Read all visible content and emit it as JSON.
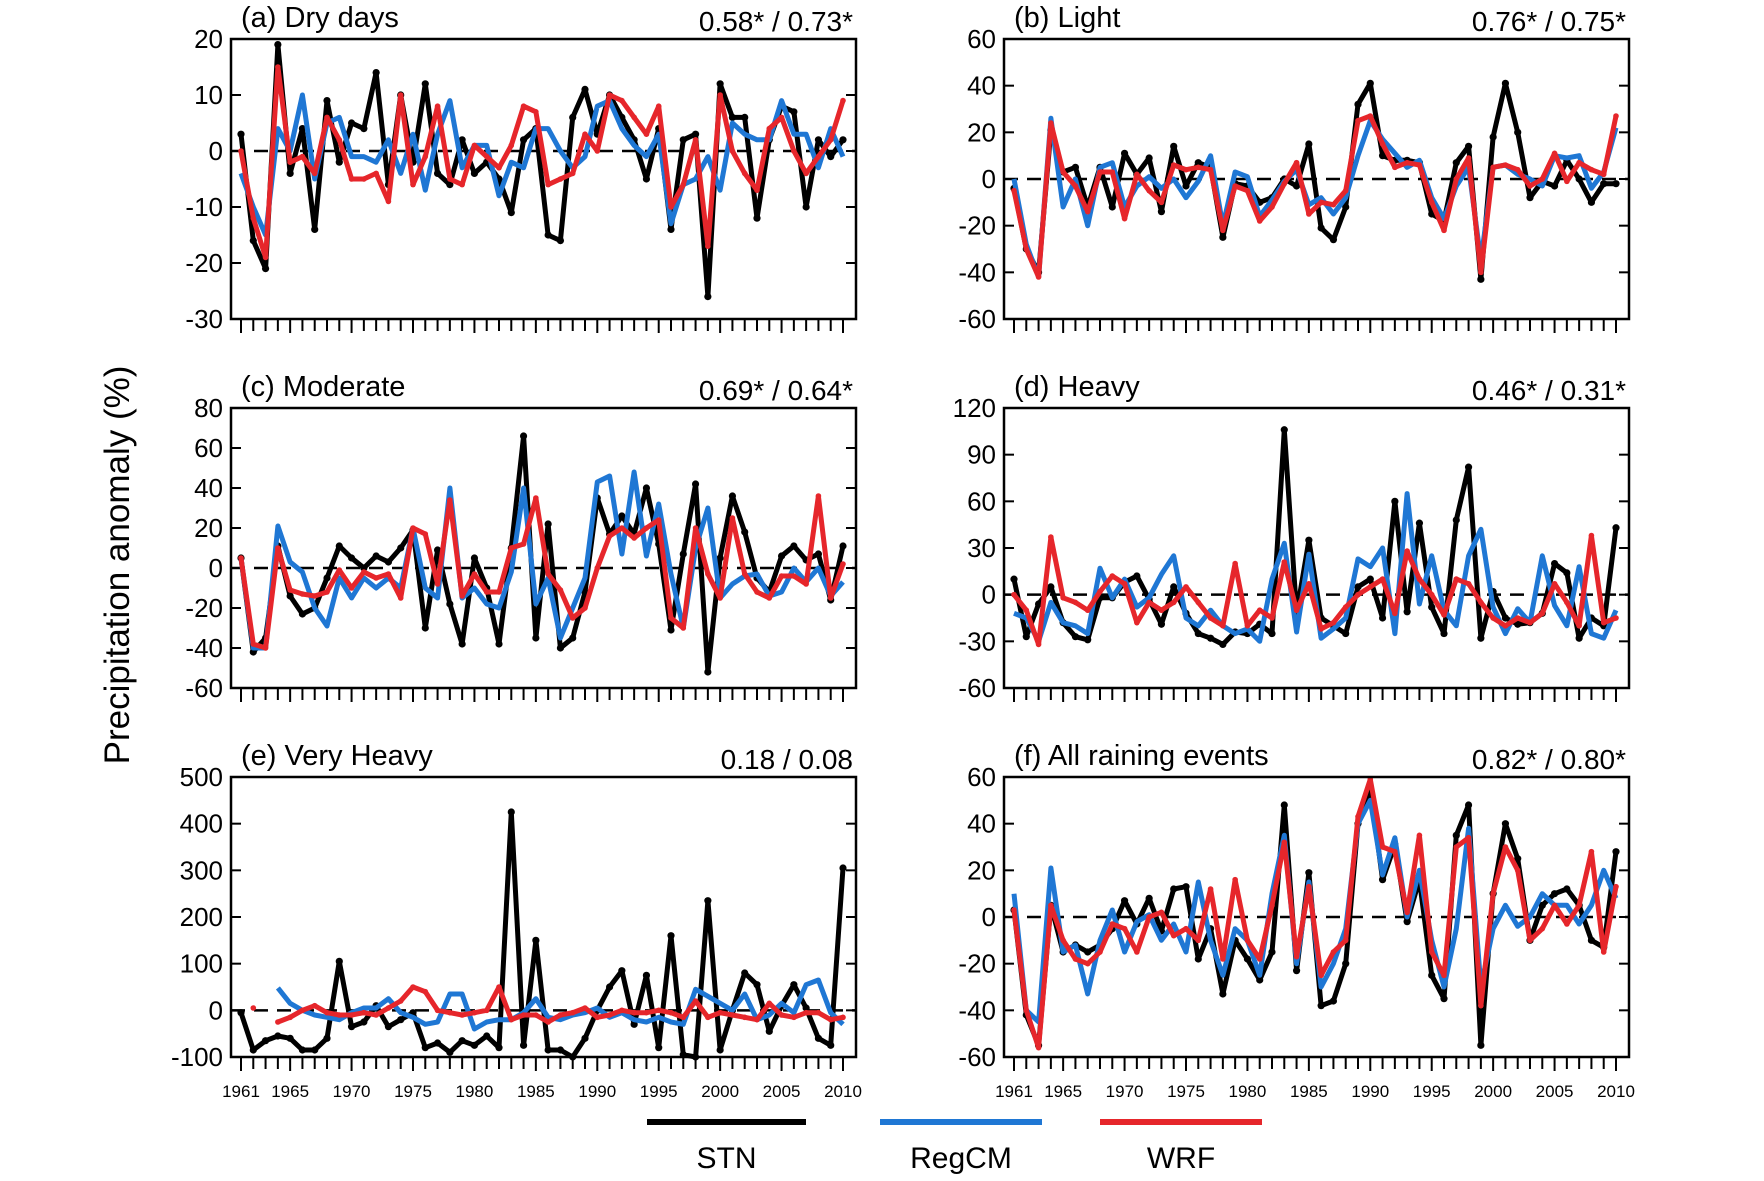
{
  "figure": {
    "ylabel": "Precipitation anomaly (%)",
    "legend": [
      {
        "name": "STN",
        "color": "#000000"
      },
      {
        "name": "RegCM",
        "color": "#1f77d4"
      },
      {
        "name": "WRF",
        "color": "#e6262b"
      }
    ]
  },
  "chart_data": [
    {
      "type": "line",
      "title": "(a) Dry days",
      "corr": "0.58* / 0.73*",
      "ylim": [
        -30,
        20
      ],
      "yticks": [
        -30,
        -20,
        -10,
        0,
        10,
        20
      ],
      "xlim": [
        1961,
        2010
      ],
      "xticks": [
        1961,
        1965,
        1970,
        1975,
        1980,
        1985,
        1990,
        1995,
        2000,
        2005,
        2010
      ],
      "series": [
        {
          "name": "STN",
          "values": [
            3,
            -16,
            -21,
            19,
            -4,
            4,
            -14,
            9,
            -2,
            5,
            4,
            14,
            -6,
            10,
            -2,
            12,
            -4,
            -6,
            2,
            -4,
            -2,
            -5,
            -11,
            2,
            4,
            -15,
            -16,
            6,
            11,
            3,
            10,
            6,
            2,
            -5,
            4,
            -14,
            2,
            3,
            -26,
            12,
            6,
            6,
            -12,
            2,
            8,
            7,
            -10,
            2,
            -1,
            2
          ]
        },
        {
          "name": "RegCM",
          "values": [
            -4,
            -10,
            -15,
            4,
            0,
            10,
            -5,
            5,
            6,
            -1,
            -1,
            -2,
            2,
            -4,
            3,
            -7,
            3,
            9,
            -3,
            1,
            1,
            -8,
            -2,
            -3,
            4,
            4,
            0,
            -3,
            -1,
            8,
            9,
            4,
            1,
            -1,
            3,
            -13,
            -6,
            -5,
            -1,
            -7,
            5,
            3,
            2,
            2,
            9,
            3,
            3,
            -3,
            4,
            -1
          ]
        },
        {
          "name": "WRF",
          "values": [
            0,
            -12,
            -19,
            15,
            -2,
            -1,
            -4,
            6,
            2,
            -5,
            -5,
            -4,
            -9,
            10,
            -6,
            -1,
            8,
            -5,
            -6,
            1,
            -1,
            -3,
            1,
            8,
            7,
            -6,
            -5,
            -4,
            3,
            0,
            10,
            9,
            6,
            3,
            8,
            -10,
            -6,
            2,
            -17,
            10,
            0,
            -4,
            -7,
            4,
            6,
            0,
            -4,
            -1,
            2,
            9
          ]
        }
      ]
    },
    {
      "type": "line",
      "title": "(b) Light",
      "corr": "0.76* / 0.75*",
      "ylim": [
        -60,
        60
      ],
      "yticks": [
        -60,
        -40,
        -20,
        0,
        20,
        40,
        60
      ],
      "xlim": [
        1961,
        2010
      ],
      "xticks": [
        1961,
        1965,
        1970,
        1975,
        1980,
        1985,
        1990,
        1995,
        2000,
        2005,
        2010
      ],
      "series": [
        {
          "name": "STN",
          "values": [
            -4,
            -30,
            -40,
            21,
            3,
            5,
            -12,
            5,
            -12,
            11,
            2,
            9,
            -14,
            14,
            -3,
            7,
            5,
            -25,
            -2,
            -3,
            -10,
            -8,
            0,
            -3,
            15,
            -21,
            -26,
            -12,
            32,
            41,
            10,
            8,
            8,
            7,
            -15,
            -18,
            7,
            14,
            -43,
            18,
            41,
            20,
            -8,
            -1,
            -3,
            8,
            0,
            -10,
            -2,
            -2
          ]
        },
        {
          "name": "RegCM",
          "values": [
            0,
            -28,
            -42,
            26,
            -12,
            0,
            -20,
            5,
            7,
            -12,
            -3,
            1,
            -4,
            0,
            -8,
            -1,
            10,
            -20,
            3,
            1,
            -16,
            -9,
            -1,
            4,
            -11,
            -8,
            -15,
            -8,
            10,
            25,
            17,
            11,
            5,
            8,
            -8,
            -17,
            -3,
            5,
            -35,
            5,
            6,
            2,
            0,
            -3,
            10,
            9,
            10,
            -4,
            3,
            22
          ]
        },
        {
          "name": "WRF",
          "values": [
            -5,
            -30,
            -42,
            24,
            3,
            -3,
            -14,
            3,
            3,
            -17,
            2,
            -5,
            -10,
            6,
            4,
            5,
            4,
            -22,
            -3,
            -5,
            -18,
            -12,
            -2,
            7,
            -15,
            -10,
            -11,
            -5,
            25,
            27,
            15,
            5,
            7,
            6,
            -10,
            -22,
            0,
            9,
            -40,
            5,
            6,
            4,
            -3,
            0,
            11,
            -1,
            7,
            4,
            2,
            27
          ]
        }
      ]
    },
    {
      "type": "line",
      "title": "(c) Moderate",
      "corr": "0.69* / 0.64*",
      "ylim": [
        -60,
        80
      ],
      "yticks": [
        -60,
        -40,
        -20,
        0,
        20,
        40,
        60,
        80
      ],
      "xlim": [
        1961,
        2010
      ],
      "xticks": [
        1961,
        1965,
        1970,
        1975,
        1980,
        1985,
        1990,
        1995,
        2000,
        2005,
        2010
      ],
      "series": [
        {
          "name": "STN",
          "values": [
            5,
            -42,
            -35,
            11,
            -14,
            -23,
            -20,
            -5,
            11,
            5,
            0,
            6,
            3,
            10,
            19,
            -30,
            9,
            -18,
            -38,
            5,
            -10,
            -38,
            10,
            66,
            -35,
            22,
            -40,
            -35,
            -12,
            35,
            17,
            26,
            17,
            40,
            12,
            -31,
            7,
            42,
            -52,
            5,
            36,
            18,
            -5,
            -12,
            6,
            11,
            4,
            7,
            -16,
            11
          ]
        },
        {
          "name": "RegCM",
          "values": [
            5,
            -40,
            -40,
            21,
            3,
            -2,
            -20,
            -29,
            -5,
            -15,
            -5,
            -10,
            -5,
            -10,
            20,
            -10,
            -15,
            40,
            -15,
            -10,
            -18,
            -20,
            -2,
            40,
            -18,
            -5,
            -35,
            -20,
            -5,
            43,
            46,
            7,
            48,
            6,
            32,
            -3,
            -30,
            10,
            30,
            -15,
            -8,
            -4,
            -3,
            -14,
            -12,
            0,
            -7,
            0,
            -14,
            -7
          ]
        },
        {
          "name": "WRF",
          "values": [
            5,
            -38,
            -40,
            10,
            -11,
            -13,
            -14,
            -12,
            -1,
            -10,
            -2,
            -5,
            -3,
            -15,
            20,
            17,
            -8,
            34,
            -14,
            -3,
            -12,
            -12,
            10,
            12,
            35,
            -3,
            -11,
            -25,
            -20,
            0,
            16,
            20,
            15,
            20,
            24,
            -25,
            -30,
            20,
            -3,
            -15,
            25,
            -3,
            -12,
            -15,
            -4,
            -4,
            -8,
            36,
            -15,
            2
          ]
        }
      ]
    },
    {
      "type": "line",
      "title": "(d) Heavy",
      "corr": "0.46* / 0.31*",
      "ylim": [
        -60,
        120
      ],
      "yticks": [
        -60,
        -30,
        0,
        30,
        60,
        90,
        120
      ],
      "xlim": [
        1961,
        2010
      ],
      "xticks": [
        1961,
        1965,
        1970,
        1975,
        1980,
        1985,
        1990,
        1995,
        2000,
        2005,
        2010
      ],
      "series": [
        {
          "name": "STN",
          "values": [
            10,
            -27,
            -6,
            5,
            -18,
            -27,
            -29,
            -2,
            -2,
            8,
            12,
            -3,
            -19,
            5,
            -12,
            -25,
            -28,
            -32,
            -24,
            -25,
            -19,
            -25,
            106,
            -12,
            35,
            -15,
            -20,
            -25,
            5,
            10,
            -15,
            60,
            -11,
            46,
            -8,
            -25,
            48,
            82,
            -28,
            2,
            -15,
            -19,
            -18,
            -12,
            20,
            14,
            -28,
            -15,
            -20,
            43
          ]
        },
        {
          "name": "RegCM",
          "values": [
            -12,
            -15,
            -30,
            -5,
            -18,
            -20,
            -25,
            17,
            -2,
            10,
            -8,
            -2,
            13,
            25,
            -15,
            -20,
            -10,
            -20,
            -25,
            -22,
            -30,
            10,
            33,
            -24,
            26,
            -28,
            -22,
            -15,
            23,
            18,
            30,
            -25,
            65,
            -6,
            25,
            -10,
            -20,
            25,
            42,
            -8,
            -25,
            -9,
            -18,
            25,
            -7,
            -20,
            18,
            -25,
            -28,
            -10
          ]
        },
        {
          "name": "WRF",
          "values": [
            0,
            -10,
            -32,
            37,
            -2,
            -5,
            -10,
            2,
            12,
            7,
            -18,
            -5,
            -10,
            -5,
            5,
            -5,
            -15,
            -20,
            20,
            -20,
            -10,
            -15,
            21,
            -10,
            7,
            -22,
            -18,
            -8,
            0,
            5,
            10,
            -12,
            28,
            10,
            0,
            -13,
            10,
            7,
            -5,
            -15,
            -20,
            -15,
            -18,
            -12,
            7,
            -5,
            -20,
            38,
            -18,
            -15
          ]
        }
      ]
    },
    {
      "type": "line",
      "title": "(e) Very Heavy",
      "corr": "0.18  / 0.08",
      "ylim": [
        -100,
        500
      ],
      "yticks": [
        -100,
        0,
        100,
        200,
        300,
        400,
        500
      ],
      "xlim": [
        1961,
        2010
      ],
      "xticks": [
        1961,
        1965,
        1970,
        1975,
        1980,
        1985,
        1990,
        1995,
        2000,
        2005,
        2010
      ],
      "series": [
        {
          "name": "STN",
          "values": [
            -5,
            -85,
            -65,
            -55,
            -60,
            -85,
            -85,
            -60,
            105,
            -35,
            -25,
            10,
            -35,
            -20,
            -5,
            -80,
            -70,
            -90,
            -65,
            -75,
            -55,
            -80,
            425,
            -75,
            150,
            -85,
            -85,
            -100,
            -60,
            0,
            50,
            85,
            -30,
            75,
            -80,
            160,
            -95,
            -100,
            235,
            -85,
            0,
            80,
            55,
            -45,
            10,
            55,
            5,
            -60,
            -75,
            305
          ]
        },
        {
          "name": "RegCM",
          "values": [
            10,
            null,
            null,
            48,
            15,
            0,
            -10,
            -15,
            -20,
            -5,
            5,
            5,
            25,
            -5,
            -15,
            -30,
            -25,
            35,
            35,
            -40,
            -25,
            -20,
            -20,
            -5,
            25,
            -15,
            -20,
            -10,
            -5,
            5,
            -15,
            -5,
            -20,
            -25,
            -15,
            -25,
            -30,
            45,
            30,
            15,
            0,
            35,
            -20,
            -10,
            15,
            -5,
            55,
            65,
            -5,
            -30
          ]
        },
        {
          "name": "WRF",
          "values": [
            null,
            5,
            null,
            -25,
            -15,
            0,
            10,
            -5,
            -10,
            -10,
            -5,
            -10,
            5,
            20,
            50,
            40,
            0,
            -5,
            -10,
            -5,
            0,
            50,
            -20,
            -10,
            -10,
            -25,
            -10,
            -5,
            5,
            -15,
            -10,
            0,
            -5,
            -5,
            0,
            -5,
            -15,
            20,
            -15,
            -5,
            -10,
            -15,
            -20,
            15,
            -10,
            -15,
            -5,
            -5,
            -20,
            -15
          ]
        }
      ]
    },
    {
      "type": "line",
      "title": "(f) All raining events",
      "corr": "0.82* / 0.80*",
      "ylim": [
        -60,
        60
      ],
      "yticks": [
        -60,
        -40,
        -20,
        0,
        20,
        40,
        60
      ],
      "xlim": [
        1961,
        2010
      ],
      "xticks": [
        1961,
        1965,
        1970,
        1975,
        1980,
        1985,
        1990,
        1995,
        2000,
        2005,
        2010
      ],
      "series": [
        {
          "name": "STN",
          "values": [
            3,
            -42,
            -55,
            5,
            -15,
            -12,
            -15,
            -12,
            -5,
            7,
            -3,
            8,
            -6,
            12,
            13,
            -18,
            -5,
            -33,
            -10,
            -18,
            -27,
            -15,
            48,
            -23,
            19,
            -38,
            -36,
            -20,
            40,
            55,
            16,
            31,
            -2,
            16,
            -25,
            -35,
            35,
            48,
            -55,
            10,
            40,
            25,
            -10,
            5,
            10,
            12,
            5,
            -10,
            -13,
            28
          ]
        },
        {
          "name": "RegCM",
          "values": [
            10,
            -40,
            -45,
            21,
            -15,
            -12,
            -33,
            -10,
            3,
            -15,
            -2,
            1,
            -10,
            -3,
            -15,
            15,
            -10,
            -25,
            -5,
            -10,
            -25,
            10,
            35,
            -20,
            15,
            -30,
            -20,
            -5,
            40,
            50,
            18,
            34,
            0,
            20,
            -10,
            -30,
            -5,
            38,
            -30,
            -5,
            5,
            -4,
            0,
            10,
            5,
            5,
            -3,
            5,
            20,
            8
          ]
        },
        {
          "name": "WRF",
          "values": [
            3,
            -40,
            -56,
            5,
            -10,
            -18,
            -20,
            -15,
            -3,
            -5,
            -15,
            0,
            2,
            -8,
            -5,
            -10,
            12,
            -18,
            16,
            -10,
            -18,
            5,
            32,
            -17,
            13,
            -25,
            -15,
            -10,
            43,
            59,
            30,
            28,
            2,
            35,
            -15,
            -25,
            30,
            34,
            -38,
            10,
            30,
            20,
            -10,
            -5,
            5,
            -3,
            5,
            28,
            -15,
            13
          ]
        }
      ]
    }
  ]
}
